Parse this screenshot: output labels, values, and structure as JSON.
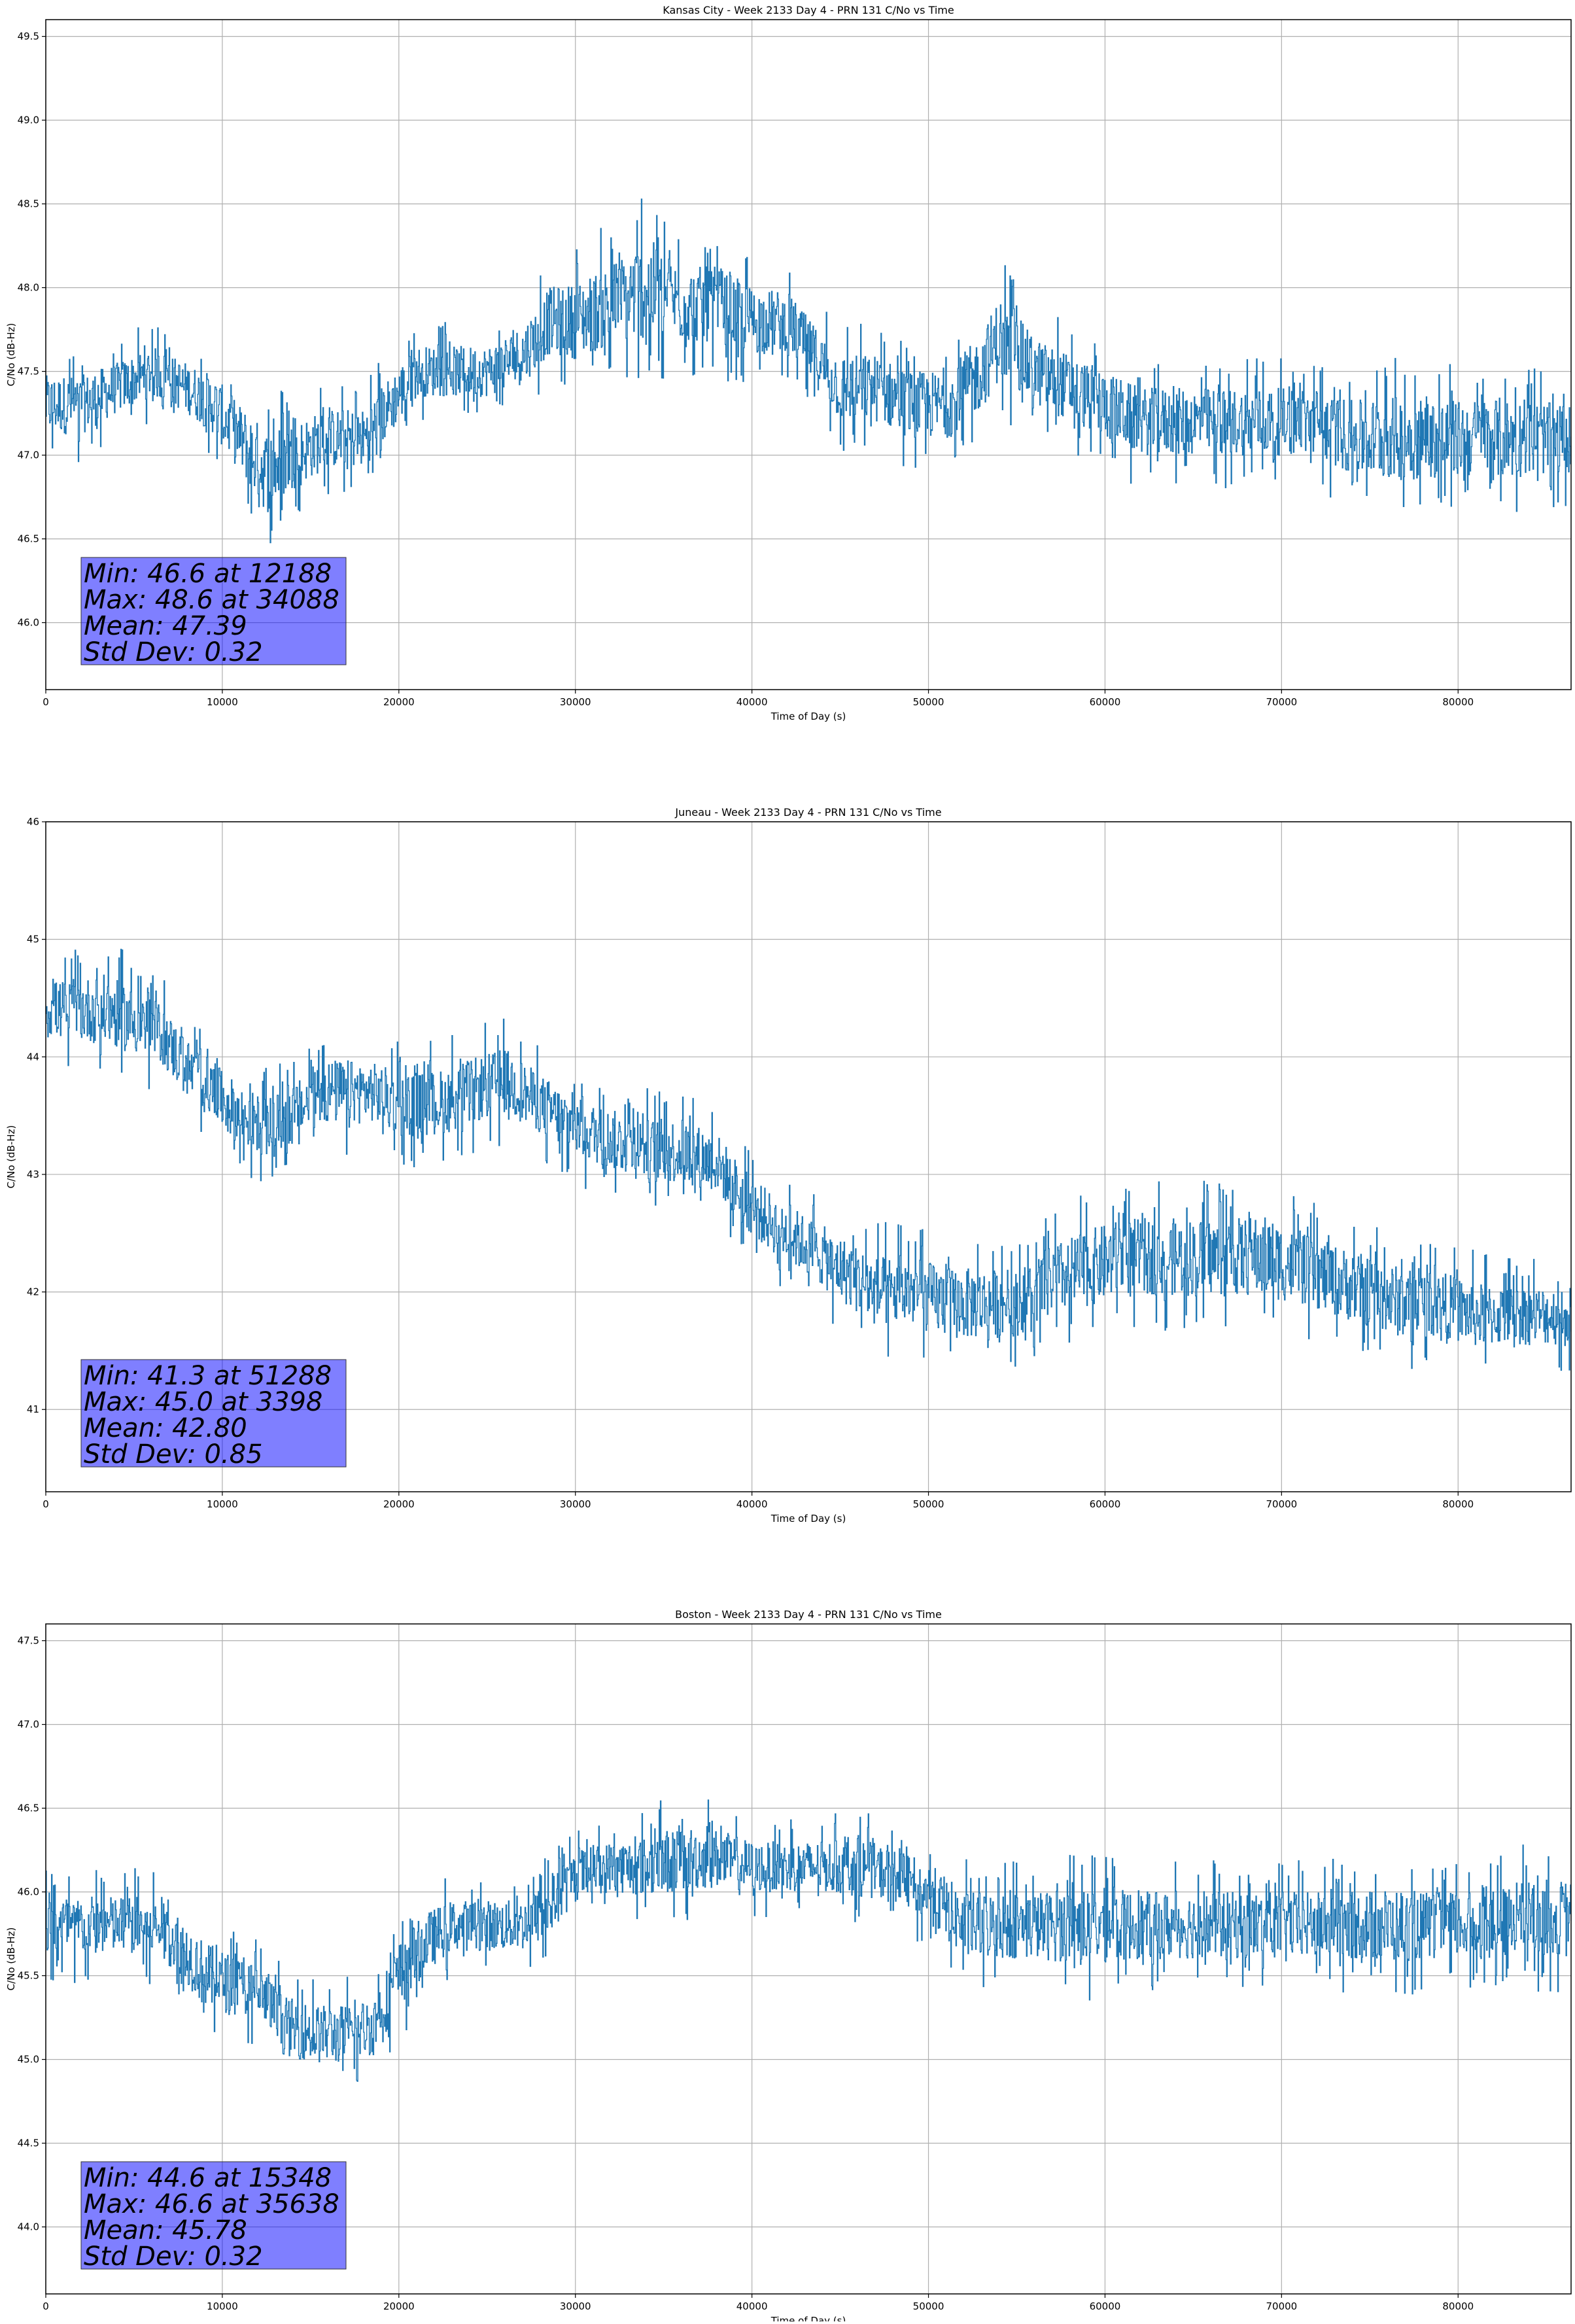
{
  "chart_data": [
    {
      "type": "line",
      "title": "Kansas City - Week 2133 Day 4 - PRN 131 C/No vs Time",
      "xlabel": "Time of Day (s)",
      "ylabel": "C/No (dB-Hz)",
      "xlim": [
        0,
        86400
      ],
      "ylim": [
        45.6,
        49.6
      ],
      "xticks": [
        0,
        10000,
        20000,
        30000,
        40000,
        50000,
        60000,
        70000,
        80000
      ],
      "yticks": [
        46.0,
        46.5,
        47.0,
        47.5,
        48.0,
        48.5,
        49.0,
        49.5
      ],
      "ytick_labels": [
        "46.0",
        "46.5",
        "47.0",
        "47.5",
        "48.0",
        "48.5",
        "49.0",
        "49.5"
      ],
      "grid": true,
      "series_color": "#1f77b4",
      "stats_lines": [
        "Min: 46.6 at 12188",
        "Max: 48.6 at 34088",
        "Mean: 47.39",
        "Std Dev: 0.32"
      ],
      "series": [
        {
          "x": [
            0,
            2000,
            4000,
            6000,
            8000,
            9500,
            11000,
            12500,
            14000,
            16000,
            18000,
            19500,
            21000,
            23000,
            25000,
            27000,
            28500,
            30000,
            32000,
            34088,
            36000,
            38000,
            40000,
            42000,
            43500,
            45000,
            47000,
            49000,
            51000,
            53000,
            54000,
            56000,
            58000,
            60000,
            62000,
            64000,
            66000,
            68000,
            70000,
            72000,
            74000,
            76000,
            78000,
            80000,
            82000,
            84000,
            86400
          ],
          "y": [
            47.3,
            47.3,
            47.4,
            47.5,
            47.4,
            47.3,
            47.1,
            46.9,
            47.0,
            47.1,
            47.1,
            47.3,
            47.5,
            47.5,
            47.5,
            47.6,
            47.8,
            47.8,
            47.9,
            48.0,
            47.9,
            47.9,
            47.8,
            47.8,
            47.6,
            47.4,
            47.4,
            47.3,
            47.3,
            47.5,
            47.7,
            47.5,
            47.4,
            47.3,
            47.2,
            47.2,
            47.2,
            47.2,
            47.2,
            47.2,
            47.1,
            47.1,
            47.1,
            47.1,
            47.1,
            47.1,
            47.1
          ],
          "band": [
            0.35,
            0.35,
            0.3,
            0.3,
            0.3,
            0.35,
            0.4,
            0.5,
            0.4,
            0.35,
            0.35,
            0.35,
            0.3,
            0.3,
            0.3,
            0.35,
            0.4,
            0.45,
            0.5,
            0.6,
            0.45,
            0.45,
            0.4,
            0.35,
            0.35,
            0.4,
            0.4,
            0.4,
            0.4,
            0.45,
            0.5,
            0.4,
            0.4,
            0.4,
            0.4,
            0.4,
            0.4,
            0.4,
            0.4,
            0.4,
            0.45,
            0.5,
            0.5,
            0.45,
            0.5,
            0.45,
            0.4
          ]
        }
      ]
    },
    {
      "type": "line",
      "title": "Juneau - Week 2133 Day 4 - PRN 131 C/No vs Time",
      "xlabel": "Time of Day (s)",
      "ylabel": "C/No (dB-Hz)",
      "xlim": [
        0,
        86400
      ],
      "ylim": [
        40.3,
        46.0
      ],
      "xticks": [
        0,
        10000,
        20000,
        30000,
        40000,
        50000,
        60000,
        70000,
        80000
      ],
      "yticks": [
        41,
        42,
        43,
        44,
        45,
        46
      ],
      "ytick_labels": [
        "41",
        "42",
        "43",
        "44",
        "45",
        "46"
      ],
      "grid": true,
      "series_color": "#1f77b4",
      "stats_lines": [
        "Min: 41.3 at 51288",
        "Max: 45.0 at 3398",
        "Mean: 42.80",
        "Std Dev: 0.85"
      ],
      "series": [
        {
          "x": [
            0,
            1500,
            3398,
            5000,
            6500,
            8000,
            9500,
            11000,
            12500,
            14000,
            15500,
            17000,
            18500,
            20000,
            22000,
            24000,
            26000,
            28000,
            30000,
            32000,
            34000,
            36000,
            38000,
            39500,
            41000,
            43000,
            45000,
            47000,
            49000,
            51288,
            53000,
            55000,
            57000,
            59000,
            61000,
            63000,
            65000,
            67000,
            69000,
            71000,
            73000,
            75000,
            77000,
            79000,
            81000,
            83000,
            86400
          ],
          "y": [
            44.4,
            44.4,
            44.4,
            44.3,
            44.2,
            43.9,
            43.7,
            43.5,
            43.4,
            43.5,
            43.7,
            43.7,
            43.7,
            43.6,
            43.6,
            43.7,
            43.8,
            43.6,
            43.4,
            43.3,
            43.2,
            43.2,
            43.1,
            42.8,
            42.6,
            42.4,
            42.2,
            42.0,
            42.0,
            41.9,
            41.9,
            41.9,
            42.1,
            42.2,
            42.3,
            42.3,
            42.3,
            42.3,
            42.3,
            42.2,
            42.1,
            42.0,
            41.9,
            41.9,
            41.8,
            41.8,
            41.8
          ],
          "band": [
            0.5,
            0.5,
            0.6,
            0.55,
            0.5,
            0.5,
            0.5,
            0.5,
            0.5,
            0.5,
            0.55,
            0.55,
            0.5,
            0.55,
            0.55,
            0.55,
            0.55,
            0.5,
            0.5,
            0.5,
            0.55,
            0.55,
            0.5,
            0.5,
            0.5,
            0.5,
            0.55,
            0.6,
            0.6,
            0.6,
            0.6,
            0.55,
            0.6,
            0.65,
            0.65,
            0.65,
            0.65,
            0.65,
            0.7,
            0.6,
            0.6,
            0.6,
            0.6,
            0.55,
            0.55,
            0.5,
            0.5
          ]
        }
      ]
    },
    {
      "type": "line",
      "title": "Boston - Week 2133 Day 4 - PRN 131 C/No vs Time",
      "xlabel": "Time of Day (s)",
      "ylabel": "C/No (dB-Hz)",
      "xlim": [
        0,
        86400
      ],
      "ylim": [
        43.6,
        47.6
      ],
      "xticks": [
        0,
        10000,
        20000,
        30000,
        40000,
        50000,
        60000,
        70000,
        80000
      ],
      "yticks": [
        44.0,
        44.5,
        45.0,
        45.5,
        46.0,
        46.5,
        47.0,
        47.5
      ],
      "ytick_labels": [
        "44.0",
        "44.5",
        "45.0",
        "45.5",
        "46.0",
        "46.5",
        "47.0",
        "47.5"
      ],
      "grid": true,
      "series_color": "#1f77b4",
      "stats_lines": [
        "Min: 44.6 at 15348",
        "Max: 46.6 at 35638",
        "Mean: 45.78",
        "Std Dev: 0.32"
      ],
      "series": [
        {
          "x": [
            0,
            2000,
            4000,
            6000,
            7500,
            9000,
            10500,
            12000,
            13500,
            15348,
            17000,
            18500,
            20000,
            21500,
            23000,
            25000,
            27000,
            28500,
            30000,
            32000,
            34000,
            35638,
            38000,
            40000,
            42000,
            44000,
            46000,
            48000,
            50000,
            52000,
            54000,
            56000,
            58000,
            60000,
            62000,
            64000,
            66000,
            68000,
            70000,
            72000,
            74000,
            76000,
            78000,
            80000,
            82000,
            84000,
            86400
          ],
          "y": [
            45.8,
            45.8,
            45.8,
            45.8,
            45.7,
            45.5,
            45.45,
            45.4,
            45.2,
            45.15,
            45.15,
            45.2,
            45.5,
            45.7,
            45.8,
            45.8,
            45.8,
            45.9,
            46.1,
            46.15,
            46.15,
            46.2,
            46.2,
            46.15,
            46.15,
            46.15,
            46.15,
            46.1,
            46.0,
            45.8,
            45.8,
            45.8,
            45.8,
            45.8,
            45.8,
            45.8,
            45.8,
            45.8,
            45.8,
            45.8,
            45.8,
            45.8,
            45.8,
            45.8,
            45.8,
            45.85,
            45.85
          ],
          "band": [
            0.35,
            0.35,
            0.35,
            0.35,
            0.35,
            0.4,
            0.35,
            0.35,
            0.35,
            0.35,
            0.35,
            0.35,
            0.4,
            0.35,
            0.3,
            0.3,
            0.3,
            0.35,
            0.3,
            0.3,
            0.35,
            0.4,
            0.35,
            0.3,
            0.3,
            0.3,
            0.35,
            0.3,
            0.35,
            0.4,
            0.4,
            0.4,
            0.45,
            0.45,
            0.4,
            0.4,
            0.4,
            0.4,
            0.4,
            0.4,
            0.4,
            0.45,
            0.4,
            0.4,
            0.4,
            0.45,
            0.45
          ]
        }
      ]
    }
  ]
}
